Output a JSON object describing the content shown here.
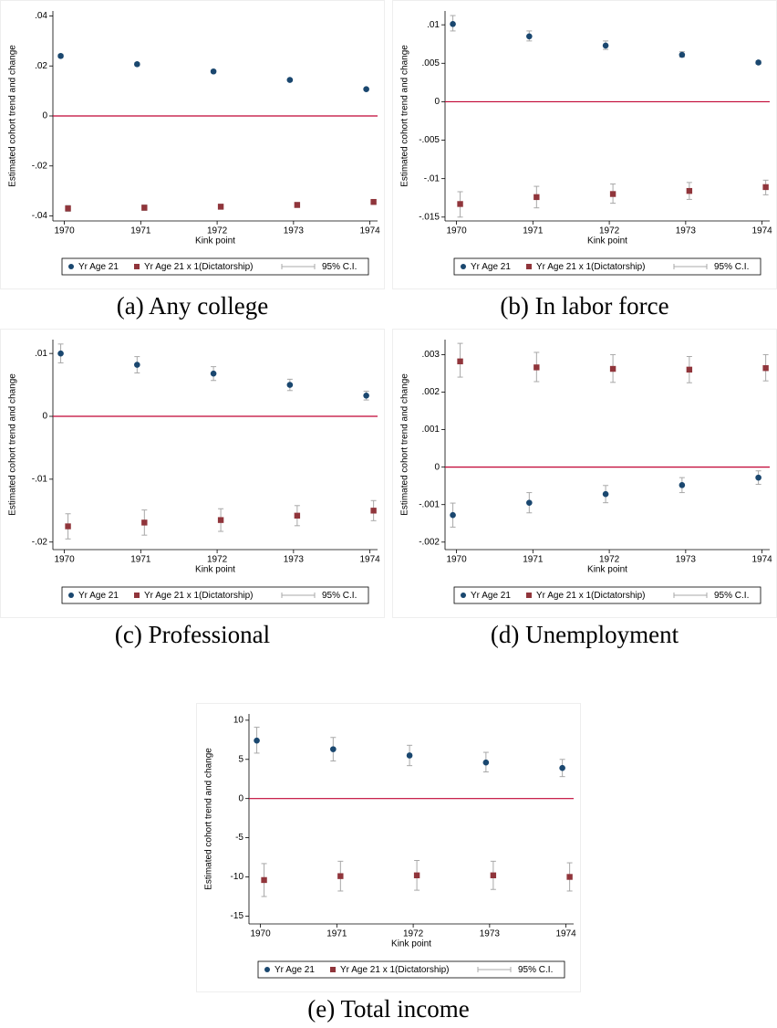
{
  "chart_data": [
    {
      "type": "errorbar",
      "caption": "(a) Any college",
      "ylabel": "Estimated cohort trend and change",
      "xlabel": "Kink point",
      "x": [
        1970,
        1971,
        1972,
        1973,
        1974
      ],
      "xlim": [
        1969.85,
        1974.1
      ],
      "xticks": [
        1970,
        1971,
        1972,
        1973,
        1974
      ],
      "ylim": [
        -0.042,
        0.042
      ],
      "yticks": [
        {
          "value": -0.04,
          "label": "-.04"
        },
        {
          "value": -0.02,
          "label": "-.02"
        },
        0,
        {
          "value": 0.02,
          "label": ".02"
        },
        {
          "value": 0.04,
          "label": ".04"
        }
      ],
      "refline": 0,
      "ci_label": "95% C.I.",
      "series": [
        {
          "name": "Yr Age 21",
          "color": "#1a476f",
          "marker": "circle",
          "values": [
            0.024,
            0.0207,
            0.0178,
            0.0144,
            0.0107
          ],
          "ci_low": [
            0.0233,
            0.0201,
            0.0173,
            0.014,
            0.0103
          ],
          "ci_high": [
            0.0247,
            0.0213,
            0.0183,
            0.0148,
            0.0111
          ]
        },
        {
          "name": "Yr Age 21 x 1(Dictatorship)",
          "color": "#90353b",
          "marker": "square",
          "values": [
            -0.037,
            -0.0367,
            -0.0363,
            -0.0356,
            -0.0344
          ],
          "ci_low": [
            -0.0382,
            -0.0378,
            -0.0373,
            -0.0366,
            -0.0354
          ],
          "ci_high": [
            -0.0358,
            -0.0356,
            -0.0353,
            -0.0346,
            -0.0334
          ]
        }
      ]
    },
    {
      "type": "errorbar",
      "caption": "(b) In labor force",
      "ylabel": "Estimated cohort trend and change",
      "xlabel": "Kink point",
      "x": [
        1970,
        1971,
        1972,
        1973,
        1974
      ],
      "xlim": [
        1969.85,
        1974.1
      ],
      "xticks": [
        1970,
        1971,
        1972,
        1973,
        1974
      ],
      "ylim": [
        -0.0155,
        0.0118
      ],
      "yticks": [
        {
          "value": -0.015,
          "label": "-.015"
        },
        {
          "value": -0.01,
          "label": "-.01"
        },
        {
          "value": -0.005,
          "label": "-.005"
        },
        0,
        {
          "value": 0.005,
          "label": ".005"
        },
        {
          "value": 0.01,
          "label": ".01"
        }
      ],
      "refline": 0,
      "ci_label": "95% C.I.",
      "series": [
        {
          "name": "Yr Age 21",
          "color": "#1a476f",
          "marker": "circle",
          "values": [
            0.0101,
            0.0085,
            0.0073,
            0.0061,
            0.0051
          ],
          "ci_low": [
            0.0092,
            0.0079,
            0.0068,
            0.0058,
            0.0049
          ],
          "ci_high": [
            0.0112,
            0.0092,
            0.0079,
            0.0065,
            0.0053
          ]
        },
        {
          "name": "Yr Age 21 x 1(Dictatorship)",
          "color": "#90353b",
          "marker": "square",
          "values": [
            -0.0133,
            -0.0124,
            -0.012,
            -0.0116,
            -0.0111
          ],
          "ci_low": [
            -0.015,
            -0.0138,
            -0.0132,
            -0.0127,
            -0.0121
          ],
          "ci_high": [
            -0.0117,
            -0.011,
            -0.0107,
            -0.0105,
            -0.0102
          ]
        }
      ]
    },
    {
      "type": "errorbar",
      "caption": "(c) Professional",
      "ylabel": "Estimated cohort trend and change",
      "xlabel": "Kink point",
      "x": [
        1970,
        1971,
        1972,
        1973,
        1974
      ],
      "xlim": [
        1969.85,
        1974.1
      ],
      "xticks": [
        1970,
        1971,
        1972,
        1973,
        1974
      ],
      "ylim": [
        -0.0212,
        0.0122
      ],
      "yticks": [
        {
          "value": -0.02,
          "label": "-.02"
        },
        {
          "value": -0.01,
          "label": "-.01"
        },
        0,
        {
          "value": 0.01,
          "label": ".01"
        }
      ],
      "refline": 0,
      "ci_label": "95% C.I.",
      "series": [
        {
          "name": "Yr Age 21",
          "color": "#1a476f",
          "marker": "circle",
          "values": [
            0.01,
            0.0082,
            0.0068,
            0.005,
            0.0033
          ],
          "ci_low": [
            0.0085,
            0.0069,
            0.0057,
            0.0041,
            0.0026
          ],
          "ci_high": [
            0.0115,
            0.0095,
            0.0079,
            0.0059,
            0.004
          ]
        },
        {
          "name": "Yr Age 21 x 1(Dictatorship)",
          "color": "#90353b",
          "marker": "square",
          "values": [
            -0.0175,
            -0.0169,
            -0.0165,
            -0.0158,
            -0.015
          ],
          "ci_low": [
            -0.0195,
            -0.0189,
            -0.0183,
            -0.0174,
            -0.0166
          ],
          "ci_high": [
            -0.0155,
            -0.0149,
            -0.0147,
            -0.0142,
            -0.0134
          ]
        }
      ]
    },
    {
      "type": "errorbar",
      "caption": "(d) Unemployment",
      "ylabel": "Estimated cohort trend and change",
      "xlabel": "Kink point",
      "x": [
        1970,
        1971,
        1972,
        1973,
        1974
      ],
      "xlim": [
        1969.85,
        1974.1
      ],
      "xticks": [
        1970,
        1971,
        1972,
        1973,
        1974
      ],
      "ylim": [
        -0.0022,
        0.0034
      ],
      "yticks": [
        {
          "value": -0.002,
          "label": "-.002"
        },
        {
          "value": -0.001,
          "label": "-.001"
        },
        0,
        {
          "value": 0.001,
          "label": ".001"
        },
        {
          "value": 0.002,
          "label": ".002"
        },
        {
          "value": 0.003,
          "label": ".003"
        }
      ],
      "refline": 0,
      "ci_label": "95% C.I.",
      "series": [
        {
          "name": "Yr Age 21",
          "color": "#1a476f",
          "marker": "circle",
          "values": [
            -0.00128,
            -0.00095,
            -0.00072,
            -0.00048,
            -0.00028
          ],
          "ci_low": [
            -0.0016,
            -0.00122,
            -0.00095,
            -0.00068,
            -0.00046
          ],
          "ci_high": [
            -0.00096,
            -0.00068,
            -0.00049,
            -0.00028,
            -0.0001
          ]
        },
        {
          "name": "Yr Age 21 x 1(Dictatorship)",
          "color": "#90353b",
          "marker": "square",
          "values": [
            0.00282,
            0.00266,
            0.00262,
            0.0026,
            0.00264
          ],
          "ci_low": [
            0.0024,
            0.00228,
            0.00226,
            0.00225,
            0.0023
          ],
          "ci_high": [
            0.0033,
            0.00306,
            0.003,
            0.00295,
            0.003
          ]
        }
      ]
    },
    {
      "type": "errorbar",
      "caption": "(e) Total income",
      "ylabel": "Estimated cohort trend and change",
      "xlabel": "Kink point",
      "x": [
        1970,
        1971,
        1972,
        1973,
        1974
      ],
      "xlim": [
        1969.85,
        1974.1
      ],
      "xticks": [
        1970,
        1971,
        1972,
        1973,
        1974
      ],
      "ylim": [
        -16,
        10.8
      ],
      "yticks": [
        -15,
        -10,
        -5,
        0,
        5,
        10
      ],
      "refline": 0,
      "ci_label": "95% C.I.",
      "series": [
        {
          "name": "Yr Age 21",
          "color": "#1a476f",
          "marker": "circle",
          "values": [
            7.4,
            6.3,
            5.5,
            4.6,
            3.9
          ],
          "ci_low": [
            5.8,
            4.8,
            4.2,
            3.4,
            2.8
          ],
          "ci_high": [
            9.1,
            7.8,
            6.8,
            5.9,
            5.0
          ]
        },
        {
          "name": "Yr Age 21 x 1(Dictatorship)",
          "color": "#90353b",
          "marker": "square",
          "values": [
            -10.4,
            -9.9,
            -9.8,
            -9.8,
            -10.0
          ],
          "ci_low": [
            -12.5,
            -11.8,
            -11.7,
            -11.6,
            -11.8
          ],
          "ci_high": [
            -8.3,
            -8.0,
            -7.9,
            -8.0,
            -8.2
          ]
        }
      ]
    }
  ]
}
